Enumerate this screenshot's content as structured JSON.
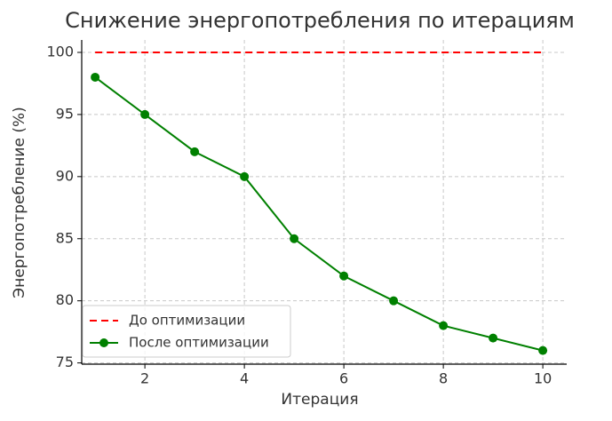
{
  "chart_data": {
    "type": "line",
    "title": "Снижение энергопотребления по итерациям",
    "xlabel": "Итерация",
    "ylabel": "Энергопотребление (%)",
    "x": [
      1,
      2,
      3,
      4,
      5,
      6,
      7,
      8,
      9,
      10
    ],
    "series": [
      {
        "name": "До оптимизации",
        "color": "#ff0000",
        "linestyle": "dashed",
        "marker": false,
        "values": [
          100,
          100,
          100,
          100,
          100,
          100,
          100,
          100,
          100,
          100
        ]
      },
      {
        "name": "После оптимизации",
        "color": "#008000",
        "linestyle": "solid",
        "marker": true,
        "values": [
          98,
          95,
          92,
          90,
          85,
          82,
          80,
          78,
          77,
          76
        ]
      }
    ],
    "xlim": [
      0.73,
      10.48
    ],
    "xticks": [
      2,
      4,
      6,
      8,
      10
    ],
    "ylim": [
      74.9,
      101.0
    ],
    "yticks": [
      75,
      80,
      85,
      90,
      95,
      100
    ],
    "grid": true,
    "legend": "lower left"
  }
}
